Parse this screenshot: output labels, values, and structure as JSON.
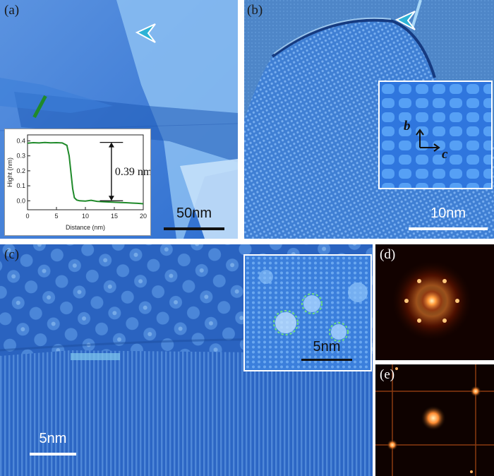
{
  "figure": {
    "panels": {
      "a": {
        "label": "(a)",
        "scale_bar": "50nm"
      },
      "b": {
        "label": "(b)",
        "scale_bar": "10nm",
        "inset_axes": {
          "vertical": "b",
          "horizontal": "c"
        }
      },
      "c": {
        "label": "(c)",
        "scale_bar": "5nm",
        "inset_scale_bar": "5nm"
      },
      "d": {
        "label": "(d)"
      },
      "e": {
        "label": "(e)"
      }
    },
    "colors": {
      "stm_dark": "#1d4f9a",
      "stm_light": "#6fa6e6",
      "profile_line": "#1f8a2a",
      "fft_glow": "#ffb060"
    }
  },
  "chart_data": {
    "type": "line",
    "title": "",
    "xlabel": "Distance (nm)",
    "ylabel": "Hight (nm)",
    "xlim": [
      0,
      20
    ],
    "ylim": [
      -0.06,
      0.44
    ],
    "xticks": [
      "0",
      "5",
      "10",
      "15",
      "20"
    ],
    "yticks": [
      "0.0",
      "0.1",
      "0.2",
      "0.3",
      "0.4"
    ],
    "annotation": "0.39 nm",
    "series": [
      {
        "name": "height profile",
        "x": [
          0,
          1,
          2,
          3,
          4,
          5,
          6,
          6.8,
          7.2,
          7.5,
          7.8,
          8.1,
          8.5,
          9,
          10,
          11,
          12,
          13,
          14,
          15,
          16,
          17,
          18,
          19,
          20
        ],
        "y": [
          0.385,
          0.388,
          0.386,
          0.389,
          0.387,
          0.388,
          0.386,
          0.37,
          0.3,
          0.19,
          0.08,
          0.02,
          0.005,
          0.0,
          -0.002,
          0.003,
          -0.004,
          -0.006,
          -0.008,
          -0.01,
          -0.012,
          -0.013,
          -0.015,
          -0.017,
          -0.02
        ]
      }
    ]
  }
}
